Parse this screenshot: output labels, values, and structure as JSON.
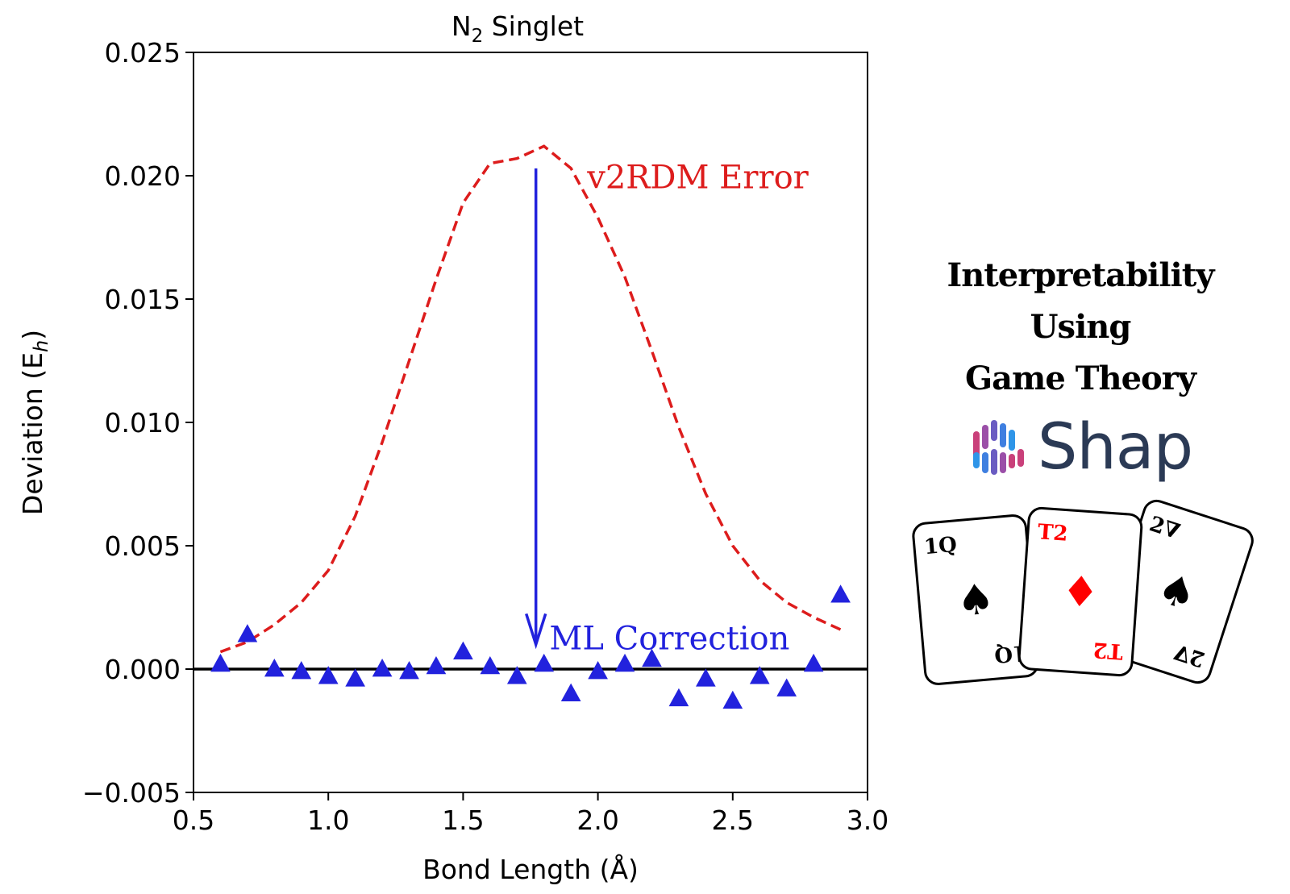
{
  "chart_data": {
    "type": "line",
    "title": "N",
    "title_subscript": "2",
    "title_rest": " Singlet",
    "xlabel": "Bond Length (Å)",
    "ylabel_main": "Deviation (E",
    "ylabel_sub": "h",
    "ylabel_close": ")",
    "xlim": [
      0.5,
      3.0
    ],
    "ylim": [
      -0.005,
      0.025
    ],
    "x_ticks": [
      "0.5",
      "1.0",
      "1.5",
      "2.0",
      "2.5",
      "3.0"
    ],
    "y_ticks": [
      "−0.005",
      "0.000",
      "0.005",
      "0.010",
      "0.015",
      "0.020",
      "0.025"
    ],
    "x_tick_values": [
      0.5,
      1.0,
      1.5,
      2.0,
      2.5,
      3.0
    ],
    "y_tick_values": [
      -0.005,
      0.0,
      0.005,
      0.01,
      0.015,
      0.02,
      0.025
    ],
    "grid": false,
    "series": [
      {
        "name": "v2RDM Error",
        "style": "dashed-line",
        "color": "#dd1c1c",
        "x": [
          0.6,
          0.7,
          0.8,
          0.9,
          1.0,
          1.1,
          1.2,
          1.3,
          1.4,
          1.5,
          1.6,
          1.7,
          1.8,
          1.9,
          2.0,
          2.1,
          2.2,
          2.3,
          2.4,
          2.5,
          2.6,
          2.7,
          2.8,
          2.9
        ],
        "y": [
          0.0007,
          0.0011,
          0.0018,
          0.0027,
          0.004,
          0.0062,
          0.0092,
          0.0125,
          0.0158,
          0.0189,
          0.0205,
          0.0207,
          0.0212,
          0.0203,
          0.0183,
          0.0159,
          0.0129,
          0.0098,
          0.0071,
          0.005,
          0.0036,
          0.0027,
          0.0021,
          0.0016
        ]
      },
      {
        "name": "ML Correction",
        "style": "triangle-markers",
        "color": "#2222dd",
        "x": [
          0.6,
          0.7,
          0.8,
          0.9,
          1.0,
          1.1,
          1.2,
          1.3,
          1.4,
          1.5,
          1.6,
          1.7,
          1.8,
          1.9,
          2.0,
          2.1,
          2.2,
          2.3,
          2.4,
          2.5,
          2.6,
          2.7,
          2.8,
          2.9
        ],
        "y": [
          0.0002,
          0.0014,
          0.0,
          -0.0001,
          -0.0003,
          -0.0004,
          0.0,
          -0.0001,
          0.0001,
          0.0007,
          0.0001,
          -0.0003,
          0.0002,
          -0.001,
          -0.0001,
          0.0002,
          0.0004,
          -0.0012,
          -0.0004,
          -0.0013,
          -0.0003,
          -0.0008,
          0.0002,
          0.003
        ]
      }
    ],
    "hline_y": 0.0,
    "arrow": {
      "x": 1.77,
      "y_start": 0.0203,
      "y_end": 0.001,
      "color": "#2222dd"
    },
    "annotations": [
      {
        "text": "v2RDM Error",
        "x": 1.96,
        "y": 0.0195,
        "color": "#dd1c1c"
      },
      {
        "text": "ML Correction",
        "x": 1.82,
        "y": 0.0008,
        "color": "#2222dd"
      }
    ]
  },
  "panel": {
    "headline_line1": "Interpretability Using",
    "headline_line2": "Game Theory",
    "logo_text": "Shap",
    "logo_icon": "shap-bars-icon",
    "logo_colors": [
      "#c9407a",
      "#9b4fa8",
      "#6a5cc2",
      "#3f7fe0",
      "#2f95e8"
    ],
    "cards": [
      {
        "corner": "Q",
        "corner_sup": "1",
        "suit": "♠",
        "color": "#000000"
      },
      {
        "corner": "T2",
        "corner_sup": "",
        "suit": "♦",
        "color": "#ff0000"
      },
      {
        "corner": "∇",
        "corner_sup": "2",
        "suit": "♠",
        "color": "#000000"
      }
    ]
  }
}
